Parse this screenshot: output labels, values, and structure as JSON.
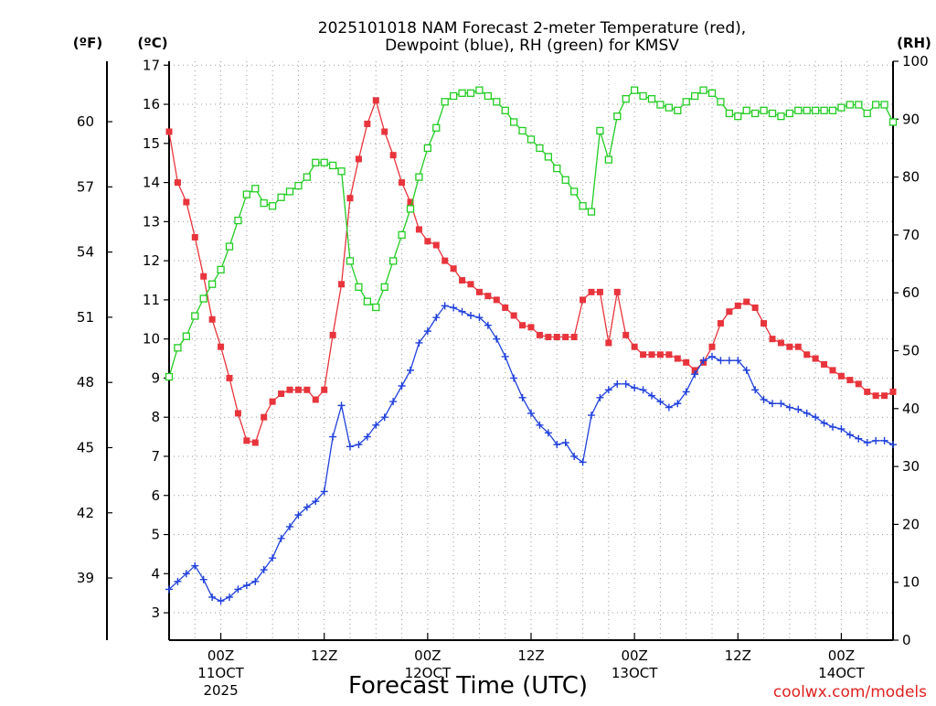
{
  "title_line1": "2025101018 NAM Forecast 2-meter Temperature (red),",
  "title_line2": "Dewpoint (blue), RH (green) for KMSV",
  "credit": "coolwx.com/models",
  "chart_data": {
    "type": "line",
    "title": "2025101018 NAM Forecast 2-meter Temperature (red), Dewpoint (blue), RH (green) for KMSV",
    "xlabel": "Forecast Time (UTC)",
    "x_unit": "forecast hour",
    "x_range": [
      0,
      84
    ],
    "x_ticks": [
      {
        "hour": 6,
        "label": "00Z",
        "sub": "11OCT",
        "sub2": "2025"
      },
      {
        "hour": 18,
        "label": "12Z",
        "sub": "",
        "sub2": ""
      },
      {
        "hour": 30,
        "label": "00Z",
        "sub": "12OCT",
        "sub2": ""
      },
      {
        "hour": 42,
        "label": "12Z",
        "sub": "",
        "sub2": ""
      },
      {
        "hour": 54,
        "label": "00Z",
        "sub": "13OCT",
        "sub2": ""
      },
      {
        "hour": 66,
        "label": "12Z",
        "sub": "",
        "sub2": ""
      },
      {
        "hour": 78,
        "label": "00Z",
        "sub": "14OCT",
        "sub2": ""
      }
    ],
    "y_left_c": {
      "label": "(ºC)",
      "range": [
        2.3,
        17.1
      ],
      "ticks": [
        3,
        4,
        5,
        6,
        7,
        8,
        9,
        10,
        11,
        12,
        13,
        14,
        15,
        16,
        17
      ]
    },
    "y_left_f": {
      "label": "(ºF)",
      "ticks": [
        39,
        42,
        45,
        48,
        51,
        54,
        57,
        60
      ]
    },
    "y_right_rh": {
      "label": "(RH)",
      "range": [
        0,
        100
      ],
      "ticks": [
        0,
        10,
        20,
        30,
        40,
        50,
        60,
        70,
        80,
        90,
        100
      ]
    },
    "series": [
      {
        "name": "Temperature",
        "color": "#e8343c",
        "axis": "C",
        "marker": "filled-square",
        "values": [
          15.3,
          14.0,
          13.5,
          12.6,
          11.6,
          10.5,
          9.8,
          9.0,
          8.1,
          7.4,
          7.35,
          8.0,
          8.4,
          8.6,
          8.7,
          8.7,
          8.7,
          8.45,
          8.7,
          10.1,
          11.4,
          13.6,
          14.6,
          15.5,
          16.1,
          15.3,
          14.7,
          14.0,
          13.5,
          12.8,
          12.5,
          12.4,
          12.0,
          11.8,
          11.5,
          11.4,
          11.2,
          11.1,
          11.0,
          10.8,
          10.6,
          10.35,
          10.3,
          10.1,
          10.05,
          10.05,
          10.05,
          10.05,
          11.0,
          11.2,
          11.2,
          9.9,
          11.2,
          10.1,
          9.8,
          9.6,
          9.6,
          9.6,
          9.6,
          9.5,
          9.4,
          9.2,
          9.4,
          9.8,
          10.4,
          10.7,
          10.85,
          10.95,
          10.8,
          10.4,
          10.0,
          9.9,
          9.8,
          9.8,
          9.6,
          9.5,
          9.35,
          9.2,
          9.05,
          8.95,
          8.85,
          8.65,
          8.55,
          8.55,
          8.65
        ]
      },
      {
        "name": "Dewpoint",
        "color": "#2040dc",
        "axis": "C",
        "marker": "plus",
        "values": [
          3.6,
          3.8,
          4.0,
          4.2,
          3.85,
          3.4,
          3.3,
          3.4,
          3.6,
          3.7,
          3.8,
          4.1,
          4.4,
          4.9,
          5.2,
          5.5,
          5.7,
          5.85,
          6.1,
          7.5,
          8.3,
          7.25,
          7.3,
          7.5,
          7.8,
          8.0,
          8.4,
          8.8,
          9.2,
          9.9,
          10.2,
          10.55,
          10.85,
          10.8,
          10.7,
          10.6,
          10.55,
          10.35,
          10.0,
          9.55,
          9.0,
          8.5,
          8.1,
          7.8,
          7.6,
          7.3,
          7.35,
          7.0,
          6.85,
          8.05,
          8.5,
          8.7,
          8.85,
          8.85,
          8.75,
          8.7,
          8.55,
          8.4,
          8.25,
          8.35,
          8.65,
          9.1,
          9.45,
          9.55,
          9.45,
          9.45,
          9.45,
          9.2,
          8.7,
          8.45,
          8.35,
          8.35,
          8.25,
          8.2,
          8.1,
          8.0,
          7.85,
          7.75,
          7.7,
          7.55,
          7.45,
          7.35,
          7.4,
          7.4,
          7.3
        ]
      },
      {
        "name": "RH",
        "color": "#22cc22",
        "axis": "RH",
        "marker": "open-square",
        "values": [
          45.5,
          50.5,
          52.5,
          56.0,
          59.0,
          61.5,
          64.0,
          68.0,
          72.5,
          77.0,
          78.0,
          75.5,
          75.0,
          76.5,
          77.5,
          78.5,
          80.0,
          82.5,
          82.5,
          82.0,
          81.0,
          65.5,
          61.0,
          58.5,
          57.5,
          61.0,
          65.5,
          70.0,
          74.5,
          80.0,
          85.0,
          88.5,
          93.0,
          94.0,
          94.5,
          94.5,
          95.0,
          94.0,
          93.0,
          91.5,
          89.5,
          88.0,
          86.5,
          85.0,
          83.5,
          81.5,
          79.5,
          77.5,
          75.0,
          74.0,
          88.0,
          83.0,
          90.5,
          93.5,
          95.0,
          94.0,
          93.5,
          92.5,
          92.0,
          91.5,
          93.0,
          94.0,
          95.0,
          94.5,
          93.0,
          91.0,
          90.5,
          91.5,
          91.0,
          91.5,
          91.0,
          90.5,
          91.0,
          91.5,
          91.5,
          91.5,
          91.5,
          91.5,
          92.0,
          92.5,
          92.5,
          91.0,
          92.5,
          92.5,
          89.5
        ]
      }
    ]
  }
}
